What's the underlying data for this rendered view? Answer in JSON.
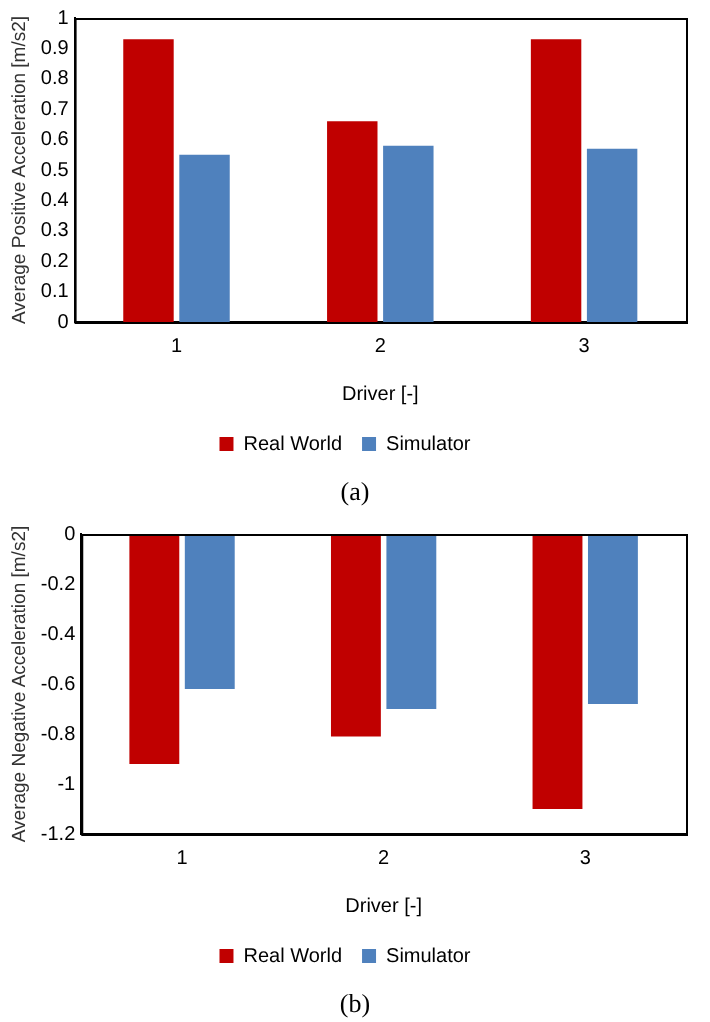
{
  "chart_data": [
    {
      "type": "bar",
      "xlabel": "Driver [-]",
      "ylabel": "Average Positive Acceleration [m/s2]",
      "categories": [
        "1",
        "2",
        "3"
      ],
      "series": [
        {
          "name": "Real World",
          "color": "#c00000",
          "values": [
            0.93,
            0.66,
            0.93
          ]
        },
        {
          "name": "Simulator",
          "color": "#4f81bd",
          "values": [
            0.55,
            0.58,
            0.57
          ]
        }
      ],
      "ylim": [
        0,
        1
      ],
      "yticks": [
        0,
        0.1,
        0.2,
        0.3,
        0.4,
        0.5,
        0.6,
        0.7,
        0.8,
        0.9,
        1
      ],
      "grid": false,
      "legend": "bottom",
      "annotations": [
        "(a)"
      ]
    },
    {
      "type": "bar",
      "xlabel": "Driver [-]",
      "ylabel": "Average Negative Acceleration [m/s2]",
      "categories": [
        "1",
        "2",
        "3"
      ],
      "series": [
        {
          "name": "Real World",
          "color": "#c00000",
          "values": [
            -0.92,
            -0.81,
            -1.1
          ]
        },
        {
          "name": "Simulator",
          "color": "#4f81bd",
          "values": [
            -0.62,
            -0.7,
            -0.68
          ]
        }
      ],
      "ylim": [
        -1.2,
        0
      ],
      "yticks": [
        0,
        -0.2,
        -0.4,
        -0.6,
        -0.8,
        -1,
        -1.2
      ],
      "grid": false,
      "legend": "bottom",
      "annotations": [
        "(b)"
      ]
    }
  ]
}
